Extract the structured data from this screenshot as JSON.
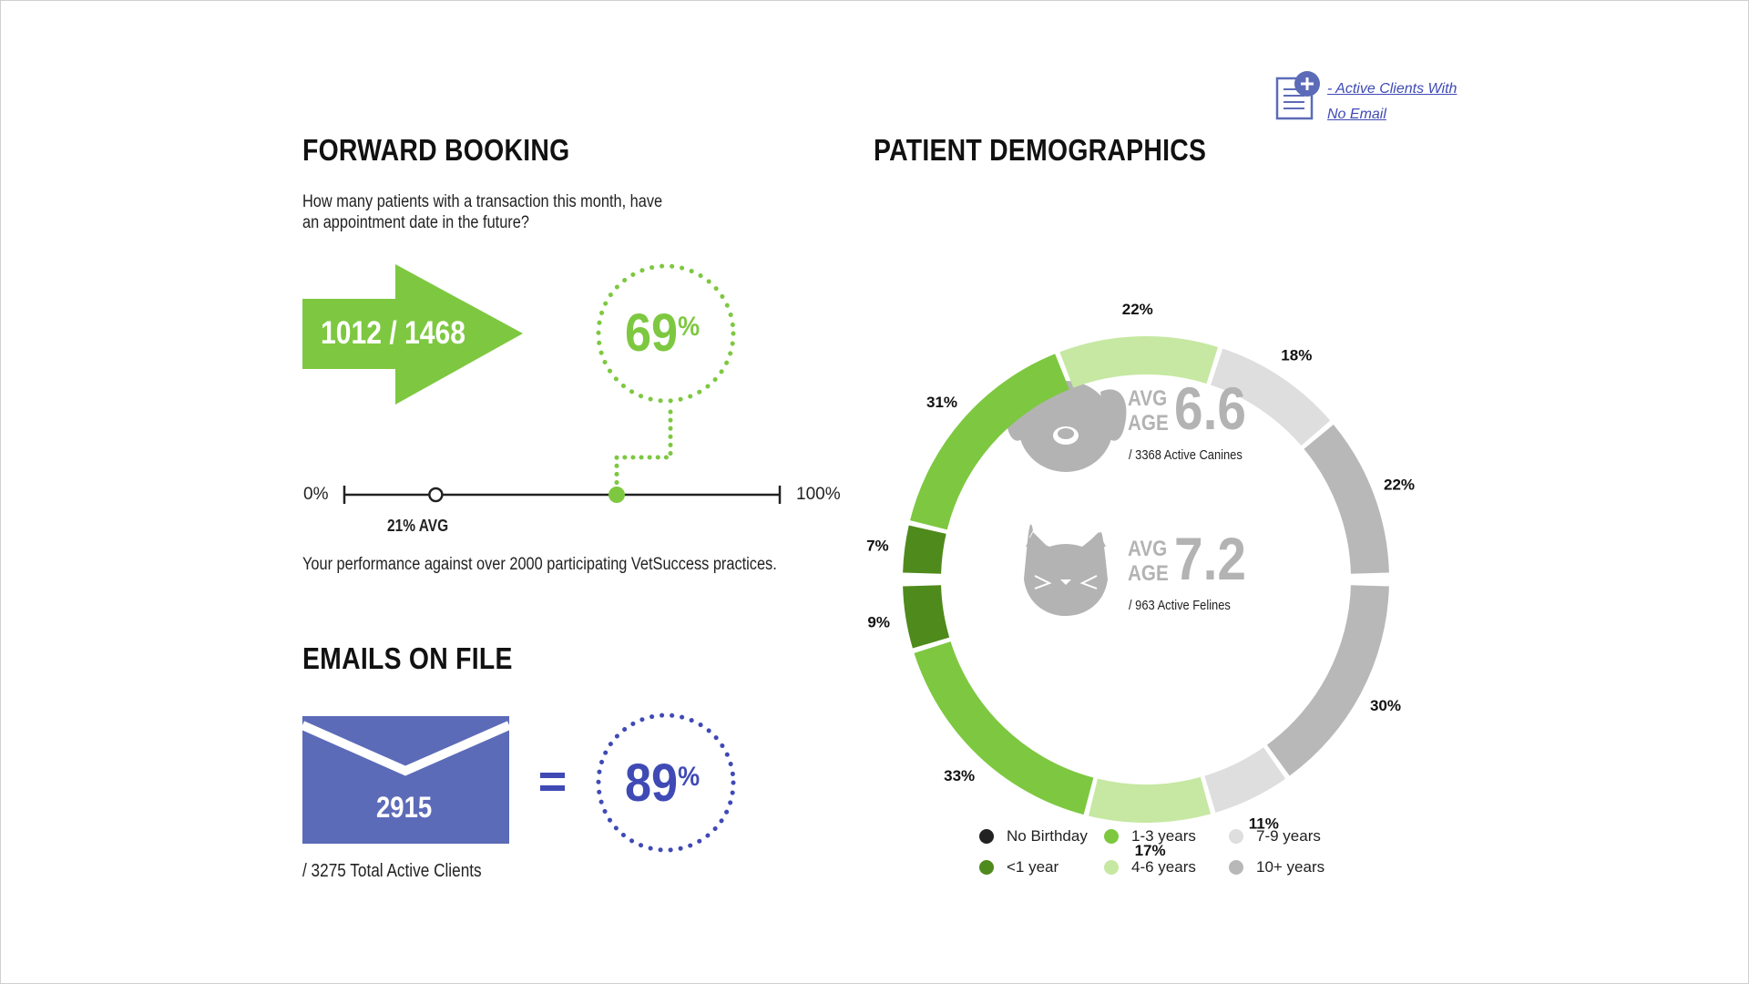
{
  "link": {
    "line1": "- Active Clients With",
    "line2": "No Email"
  },
  "forward_booking": {
    "title": "FORWARD BOOKING",
    "question": "How many patients with a transaction this month, have an appointment date in the future?",
    "ratio": "1012 / 1468",
    "percent": "69",
    "percent_sign": "%",
    "scale_min": "0%",
    "scale_max": "100%",
    "avg_label": "21% AVG",
    "avg_value": 0.21,
    "footnote": "Your performance against over 2000 participating VetSuccess practices."
  },
  "emails": {
    "title": "EMAILS ON FILE",
    "count": "2915",
    "equals": "=",
    "percent": "89",
    "percent_sign": "%",
    "footnote": "/ 3275 Total Active Clients"
  },
  "demographics": {
    "title": "PATIENT DEMOGRAPHICS",
    "canine": {
      "avg": "AVG",
      "age": "AGE",
      "value": "6.6",
      "sub": "/ 3368 Active Canines"
    },
    "feline": {
      "avg": "AVG",
      "age": "AGE",
      "value": "7.2",
      "sub": "/ 963 Active Felines"
    }
  },
  "colors": {
    "green": "#7dc840",
    "dark_green": "#4f8a1c",
    "light_green": "#c6e8a2",
    "light_gray": "#dedede",
    "gray": "#b8b8b8",
    "black": "#222222",
    "blue": "#3f4ab5",
    "envelope": "#5c6bb8",
    "icon_gray": "#b3b3b3"
  },
  "chart_data": [
    {
      "type": "pie",
      "title": "",
      "series_group": "Active Canines",
      "categories": [
        "<1 year",
        "1-3 years",
        "4-6 years",
        "7-9 years",
        "10+ years"
      ],
      "values": [
        7,
        31,
        22,
        18,
        22
      ],
      "labels": [
        "7%",
        "31%",
        "22%",
        "18%",
        "22%"
      ]
    },
    {
      "type": "pie",
      "title": "",
      "series_group": "Active Felines",
      "categories": [
        "<1 year",
        "1-3 years",
        "4-6 years",
        "7-9 years",
        "10+ years"
      ],
      "values": [
        9,
        33,
        17,
        11,
        30
      ],
      "labels": [
        "9%",
        "33%",
        "17%",
        "11%",
        "30%"
      ]
    }
  ],
  "legend": {
    "items": [
      {
        "label": "No Birthday",
        "color": "#222222"
      },
      {
        "label": "<1 year",
        "color": "#4f8a1c"
      },
      {
        "label": "1-3 years",
        "color": "#7dc840"
      },
      {
        "label": "4-6 years",
        "color": "#c6e8a2"
      },
      {
        "label": "7-9 years",
        "color": "#dedede"
      },
      {
        "label": "10+ years",
        "color": "#b8b8b8"
      }
    ]
  }
}
